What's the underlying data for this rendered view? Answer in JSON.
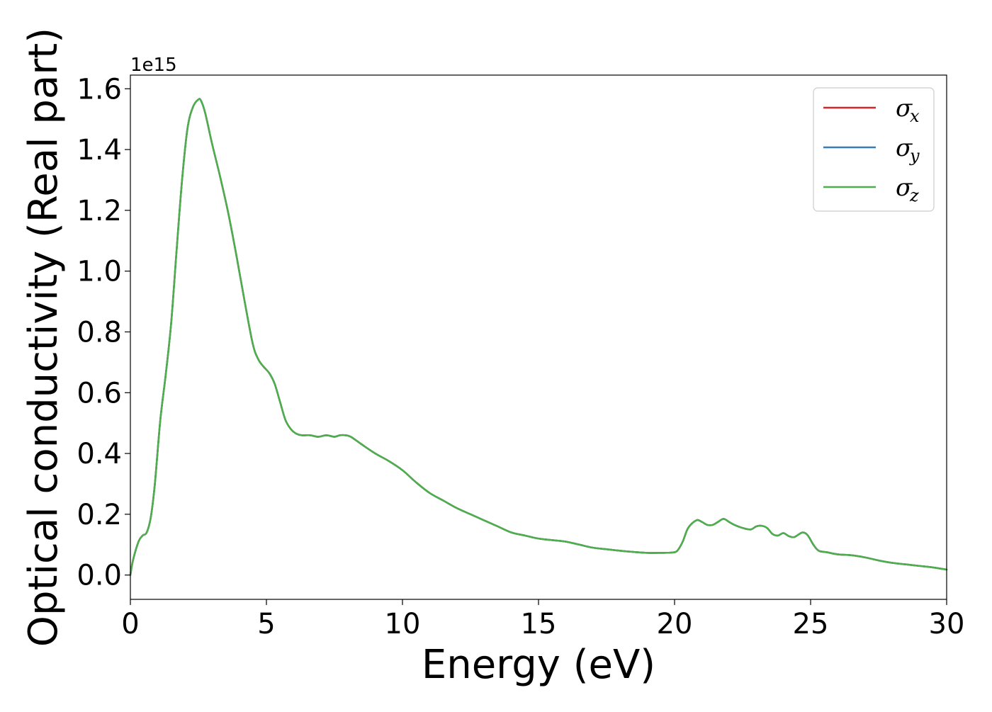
{
  "chart_data": {
    "type": "line",
    "title": "",
    "xlabel": "Energy (eV)",
    "ylabel": "Optical conductivity (Real part)",
    "y_offset_text": "1e15",
    "xlim": [
      0,
      30
    ],
    "ylim": [
      -0.08,
      1.645
    ],
    "x_ticks": [
      0,
      5,
      10,
      15,
      20,
      25,
      30
    ],
    "x_tick_labels": [
      "0",
      "5",
      "10",
      "15",
      "20",
      "25",
      "30"
    ],
    "y_ticks": [
      0.0,
      0.2,
      0.4,
      0.6,
      0.8,
      1.0,
      1.2,
      1.4,
      1.6
    ],
    "y_tick_labels": [
      "0.0",
      "0.2",
      "0.4",
      "0.6",
      "0.8",
      "1.0",
      "1.2",
      "1.4",
      "1.6"
    ],
    "grid": false,
    "legend_position": "top-right",
    "x": [
      0.0,
      0.1,
      0.3,
      0.45,
      0.6,
      0.75,
      0.9,
      1.1,
      1.3,
      1.5,
      1.7,
      1.9,
      2.1,
      2.3,
      2.5,
      2.6,
      2.75,
      3.0,
      3.3,
      3.6,
      3.9,
      4.2,
      4.5,
      4.7,
      4.9,
      5.1,
      5.3,
      5.5,
      5.7,
      5.9,
      6.1,
      6.3,
      6.6,
      6.9,
      7.2,
      7.5,
      7.7,
      7.9,
      8.1,
      8.5,
      9.0,
      9.5,
      10.0,
      10.5,
      11.0,
      11.5,
      12.0,
      12.5,
      13.0,
      13.5,
      14.0,
      14.5,
      15.0,
      15.5,
      16.0,
      16.5,
      17.0,
      17.5,
      18.0,
      18.5,
      19.0,
      19.5,
      19.9,
      20.1,
      20.3,
      20.5,
      20.8,
      21.0,
      21.2,
      21.4,
      21.6,
      21.8,
      22.0,
      22.2,
      22.5,
      22.8,
      23.0,
      23.2,
      23.4,
      23.6,
      23.8,
      24.0,
      24.2,
      24.4,
      24.7,
      24.9,
      25.1,
      25.3,
      25.6,
      26.0,
      26.5,
      27.0,
      27.5,
      28.0,
      28.5,
      29.0,
      29.5,
      30.0
    ],
    "series": [
      {
        "name": "σ_x",
        "symbol": "σ",
        "subscript": "x",
        "color": "#d62728",
        "values": [
          0.0,
          0.05,
          0.11,
          0.13,
          0.14,
          0.19,
          0.3,
          0.51,
          0.66,
          0.83,
          1.07,
          1.3,
          1.47,
          1.54,
          1.565,
          1.56,
          1.52,
          1.42,
          1.31,
          1.19,
          1.05,
          0.9,
          0.76,
          0.71,
          0.685,
          0.665,
          0.63,
          0.57,
          0.51,
          0.48,
          0.465,
          0.46,
          0.46,
          0.455,
          0.46,
          0.455,
          0.46,
          0.46,
          0.455,
          0.43,
          0.4,
          0.375,
          0.345,
          0.305,
          0.27,
          0.245,
          0.22,
          0.2,
          0.18,
          0.16,
          0.14,
          0.13,
          0.12,
          0.115,
          0.11,
          0.1,
          0.09,
          0.085,
          0.08,
          0.076,
          0.073,
          0.073,
          0.074,
          0.08,
          0.11,
          0.155,
          0.18,
          0.175,
          0.165,
          0.165,
          0.175,
          0.185,
          0.175,
          0.165,
          0.155,
          0.15,
          0.16,
          0.162,
          0.155,
          0.135,
          0.13,
          0.138,
          0.128,
          0.125,
          0.14,
          0.13,
          0.1,
          0.08,
          0.075,
          0.068,
          0.065,
          0.058,
          0.048,
          0.04,
          0.035,
          0.03,
          0.025,
          0.018
        ]
      },
      {
        "name": "σ_y",
        "symbol": "σ",
        "subscript": "y",
        "color": "#377eb8",
        "values": [
          0.0,
          0.05,
          0.11,
          0.13,
          0.14,
          0.19,
          0.3,
          0.51,
          0.66,
          0.83,
          1.07,
          1.3,
          1.47,
          1.54,
          1.565,
          1.56,
          1.52,
          1.42,
          1.31,
          1.19,
          1.05,
          0.9,
          0.76,
          0.71,
          0.685,
          0.665,
          0.63,
          0.57,
          0.51,
          0.48,
          0.465,
          0.46,
          0.46,
          0.455,
          0.46,
          0.455,
          0.46,
          0.46,
          0.455,
          0.43,
          0.4,
          0.375,
          0.345,
          0.305,
          0.27,
          0.245,
          0.22,
          0.2,
          0.18,
          0.16,
          0.14,
          0.13,
          0.12,
          0.115,
          0.11,
          0.1,
          0.09,
          0.085,
          0.08,
          0.076,
          0.073,
          0.073,
          0.074,
          0.08,
          0.11,
          0.155,
          0.18,
          0.175,
          0.165,
          0.165,
          0.175,
          0.185,
          0.175,
          0.165,
          0.155,
          0.15,
          0.16,
          0.162,
          0.155,
          0.135,
          0.13,
          0.138,
          0.128,
          0.125,
          0.14,
          0.13,
          0.1,
          0.08,
          0.075,
          0.068,
          0.065,
          0.058,
          0.048,
          0.04,
          0.035,
          0.03,
          0.025,
          0.018
        ]
      },
      {
        "name": "σ_z",
        "symbol": "σ",
        "subscript": "z",
        "color": "#4daf4a",
        "values": [
          0.0,
          0.05,
          0.11,
          0.13,
          0.14,
          0.19,
          0.3,
          0.51,
          0.66,
          0.83,
          1.07,
          1.3,
          1.47,
          1.54,
          1.565,
          1.56,
          1.52,
          1.42,
          1.31,
          1.19,
          1.05,
          0.9,
          0.76,
          0.71,
          0.685,
          0.665,
          0.63,
          0.57,
          0.51,
          0.48,
          0.465,
          0.46,
          0.46,
          0.455,
          0.46,
          0.455,
          0.46,
          0.46,
          0.455,
          0.43,
          0.4,
          0.375,
          0.345,
          0.305,
          0.27,
          0.245,
          0.22,
          0.2,
          0.18,
          0.16,
          0.14,
          0.13,
          0.12,
          0.115,
          0.11,
          0.1,
          0.09,
          0.085,
          0.08,
          0.076,
          0.073,
          0.073,
          0.074,
          0.08,
          0.11,
          0.155,
          0.18,
          0.175,
          0.165,
          0.165,
          0.175,
          0.185,
          0.175,
          0.165,
          0.155,
          0.15,
          0.16,
          0.162,
          0.155,
          0.135,
          0.13,
          0.138,
          0.128,
          0.125,
          0.14,
          0.13,
          0.1,
          0.08,
          0.075,
          0.068,
          0.065,
          0.058,
          0.048,
          0.04,
          0.035,
          0.03,
          0.025,
          0.018
        ]
      }
    ]
  }
}
